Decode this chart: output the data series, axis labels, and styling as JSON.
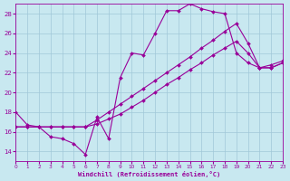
{
  "xlabel": "Windchill (Refroidissement éolien,°C)",
  "bg_color": "#c8e8f0",
  "grid_color": "#a0c8d8",
  "line_color": "#990099",
  "xmin": 0,
  "xmax": 23,
  "ymin": 13,
  "ymax": 29,
  "yticks": [
    14,
    16,
    18,
    20,
    22,
    24,
    26,
    28
  ],
  "series": [
    {
      "x": [
        0,
        1,
        2,
        3,
        4,
        5,
        6,
        7,
        8,
        9,
        10,
        11,
        12,
        13,
        14,
        15,
        16,
        17,
        18,
        19,
        20,
        21,
        22,
        23
      ],
      "y": [
        18.0,
        16.7,
        16.5,
        15.5,
        15.3,
        14.8,
        13.7,
        17.5,
        15.3,
        21.5,
        24.0,
        23.8,
        26.0,
        28.3,
        28.3,
        29.0,
        28.5,
        28.2,
        28.0,
        24.0,
        23.0,
        22.5,
        22.8,
        23.2
      ]
    },
    {
      "x": [
        0,
        1,
        2,
        3,
        4,
        5,
        6,
        7,
        8,
        9,
        10,
        11,
        12,
        13,
        14,
        15,
        16,
        17,
        18,
        19,
        20,
        21,
        22,
        23
      ],
      "y": [
        16.5,
        16.5,
        16.5,
        16.5,
        16.5,
        16.5,
        16.5,
        17.2,
        18.0,
        18.8,
        19.6,
        20.4,
        21.2,
        22.0,
        22.8,
        23.6,
        24.5,
        25.3,
        26.2,
        27.0,
        25.0,
        22.5,
        22.5,
        23.0
      ]
    },
    {
      "x": [
        0,
        1,
        2,
        3,
        4,
        5,
        6,
        7,
        8,
        9,
        10,
        11,
        12,
        13,
        14,
        15,
        16,
        17,
        18,
        19,
        20,
        21,
        22,
        23
      ],
      "y": [
        16.5,
        16.5,
        16.5,
        16.5,
        16.5,
        16.5,
        16.5,
        16.8,
        17.3,
        17.8,
        18.5,
        19.2,
        20.0,
        20.8,
        21.5,
        22.3,
        23.0,
        23.8,
        24.5,
        25.2,
        24.0,
        22.5,
        22.5,
        23.0
      ]
    }
  ]
}
